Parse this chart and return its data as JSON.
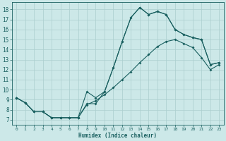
{
  "xlabel": "Humidex (Indice chaleur)",
  "background_color": "#cce8e8",
  "grid_color": "#aacece",
  "line_color": "#1a6060",
  "xlim": [
    -0.5,
    23.5
  ],
  "ylim": [
    6.5,
    18.7
  ],
  "yticks": [
    7,
    8,
    9,
    10,
    11,
    12,
    13,
    14,
    15,
    16,
    17,
    18
  ],
  "xticks": [
    0,
    1,
    2,
    3,
    4,
    5,
    6,
    7,
    8,
    9,
    10,
    11,
    12,
    13,
    14,
    15,
    16,
    17,
    18,
    19,
    20,
    21,
    22,
    23
  ],
  "curve1_x": [
    0,
    1,
    2,
    3,
    4,
    5,
    6,
    7,
    8,
    9,
    10,
    11,
    12,
    13,
    14,
    15,
    16,
    17,
    18,
    19,
    20,
    21,
    22,
    23
  ],
  "curve1_y": [
    9.2,
    8.7,
    7.8,
    7.8,
    7.2,
    7.2,
    7.2,
    7.2,
    9.8,
    9.2,
    9.8,
    12.2,
    14.8,
    17.2,
    18.2,
    17.5,
    17.8,
    17.5,
    16.0,
    15.5,
    15.2,
    15.0,
    12.5,
    12.7
  ],
  "curve2_x": [
    0,
    1,
    2,
    3,
    4,
    5,
    6,
    7,
    8,
    9,
    10,
    11,
    12,
    13,
    14,
    15,
    16,
    17,
    18,
    19,
    20,
    21,
    22,
    23
  ],
  "curve2_y": [
    9.2,
    8.7,
    7.8,
    7.8,
    7.2,
    7.2,
    7.2,
    7.2,
    8.6,
    8.6,
    9.8,
    12.2,
    14.8,
    17.2,
    18.2,
    17.5,
    17.8,
    17.5,
    16.0,
    15.5,
    15.2,
    15.0,
    12.5,
    12.7
  ],
  "curve3_x": [
    0,
    1,
    2,
    3,
    4,
    5,
    6,
    7,
    8,
    9,
    10,
    11,
    12,
    13,
    14,
    15,
    16,
    17,
    18,
    19,
    20,
    21,
    22,
    23
  ],
  "curve3_y": [
    9.2,
    8.7,
    7.8,
    7.8,
    7.2,
    7.2,
    7.2,
    7.2,
    8.5,
    8.9,
    9.5,
    10.2,
    11.0,
    11.8,
    12.7,
    13.5,
    14.3,
    14.8,
    15.0,
    14.6,
    14.2,
    13.2,
    12.0,
    12.5
  ]
}
